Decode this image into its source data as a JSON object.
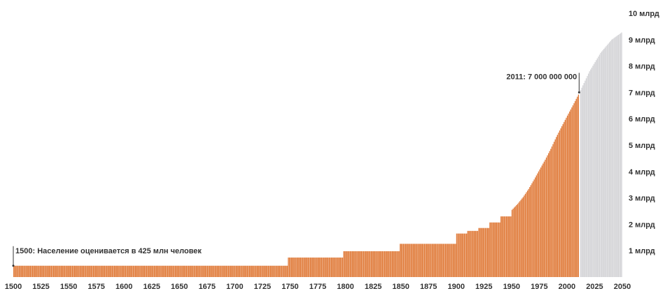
{
  "chart_data": {
    "type": "bar",
    "title": "",
    "xlabel": "",
    "ylabel": "",
    "xlim": [
      1500,
      2050
    ],
    "ylim": [
      0,
      10
    ],
    "y_unit": "млрд",
    "x_ticks": [
      "1500",
      "1525",
      "1550",
      "1575",
      "1600",
      "1625",
      "1650",
      "1675",
      "1700",
      "1725",
      "1750",
      "1775",
      "1800",
      "1825",
      "1850",
      "1875",
      "1900",
      "1925",
      "1950",
      "1975",
      "2000",
      "2025",
      "2050"
    ],
    "y_ticks": [
      "1 млрд",
      "2 млрд",
      "3 млрд",
      "4 млрд",
      "5 млрд",
      "6 млрд",
      "7 млрд",
      "8 млрд",
      "9 млрд",
      "10 млрд"
    ],
    "series": [
      {
        "kind": "historical",
        "color": "#e07b3a",
        "points": [
          [
            1500,
            0.43
          ],
          [
            1747,
            0.43
          ],
          [
            1748,
            0.74
          ],
          [
            1797,
            0.74
          ],
          [
            1798,
            0.98
          ],
          [
            1848,
            0.98
          ],
          [
            1849,
            1.26
          ],
          [
            1899,
            1.26
          ],
          [
            1900,
            1.65
          ],
          [
            1909,
            1.65
          ],
          [
            1910,
            1.75
          ],
          [
            1919,
            1.75
          ],
          [
            1920,
            1.86
          ],
          [
            1929,
            1.86
          ],
          [
            1930,
            2.07
          ],
          [
            1939,
            2.07
          ],
          [
            1940,
            2.3
          ],
          [
            1949,
            2.3
          ],
          [
            1950,
            2.55
          ],
          [
            1955,
            2.77
          ],
          [
            1960,
            3.03
          ],
          [
            1965,
            3.34
          ],
          [
            1970,
            3.7
          ],
          [
            1975,
            4.08
          ],
          [
            1980,
            4.45
          ],
          [
            1985,
            4.86
          ],
          [
            1990,
            5.31
          ],
          [
            1995,
            5.72
          ],
          [
            2000,
            6.12
          ],
          [
            2005,
            6.51
          ],
          [
            2011,
            7.0
          ]
        ]
      },
      {
        "kind": "projection",
        "color": "#d3d3d6",
        "points": [
          [
            2011,
            7.0
          ],
          [
            2020,
            7.8
          ],
          [
            2030,
            8.5
          ],
          [
            2040,
            9.0
          ],
          [
            2050,
            9.3
          ]
        ]
      }
    ],
    "annotations": [
      {
        "x": 1500,
        "y": 0.43,
        "text": "1500: Население оценивается в 425 млн человек"
      },
      {
        "x": 2011,
        "y": 7.0,
        "text": "2011: 7 000 000 000"
      }
    ],
    "grid": false,
    "legend": "none"
  }
}
